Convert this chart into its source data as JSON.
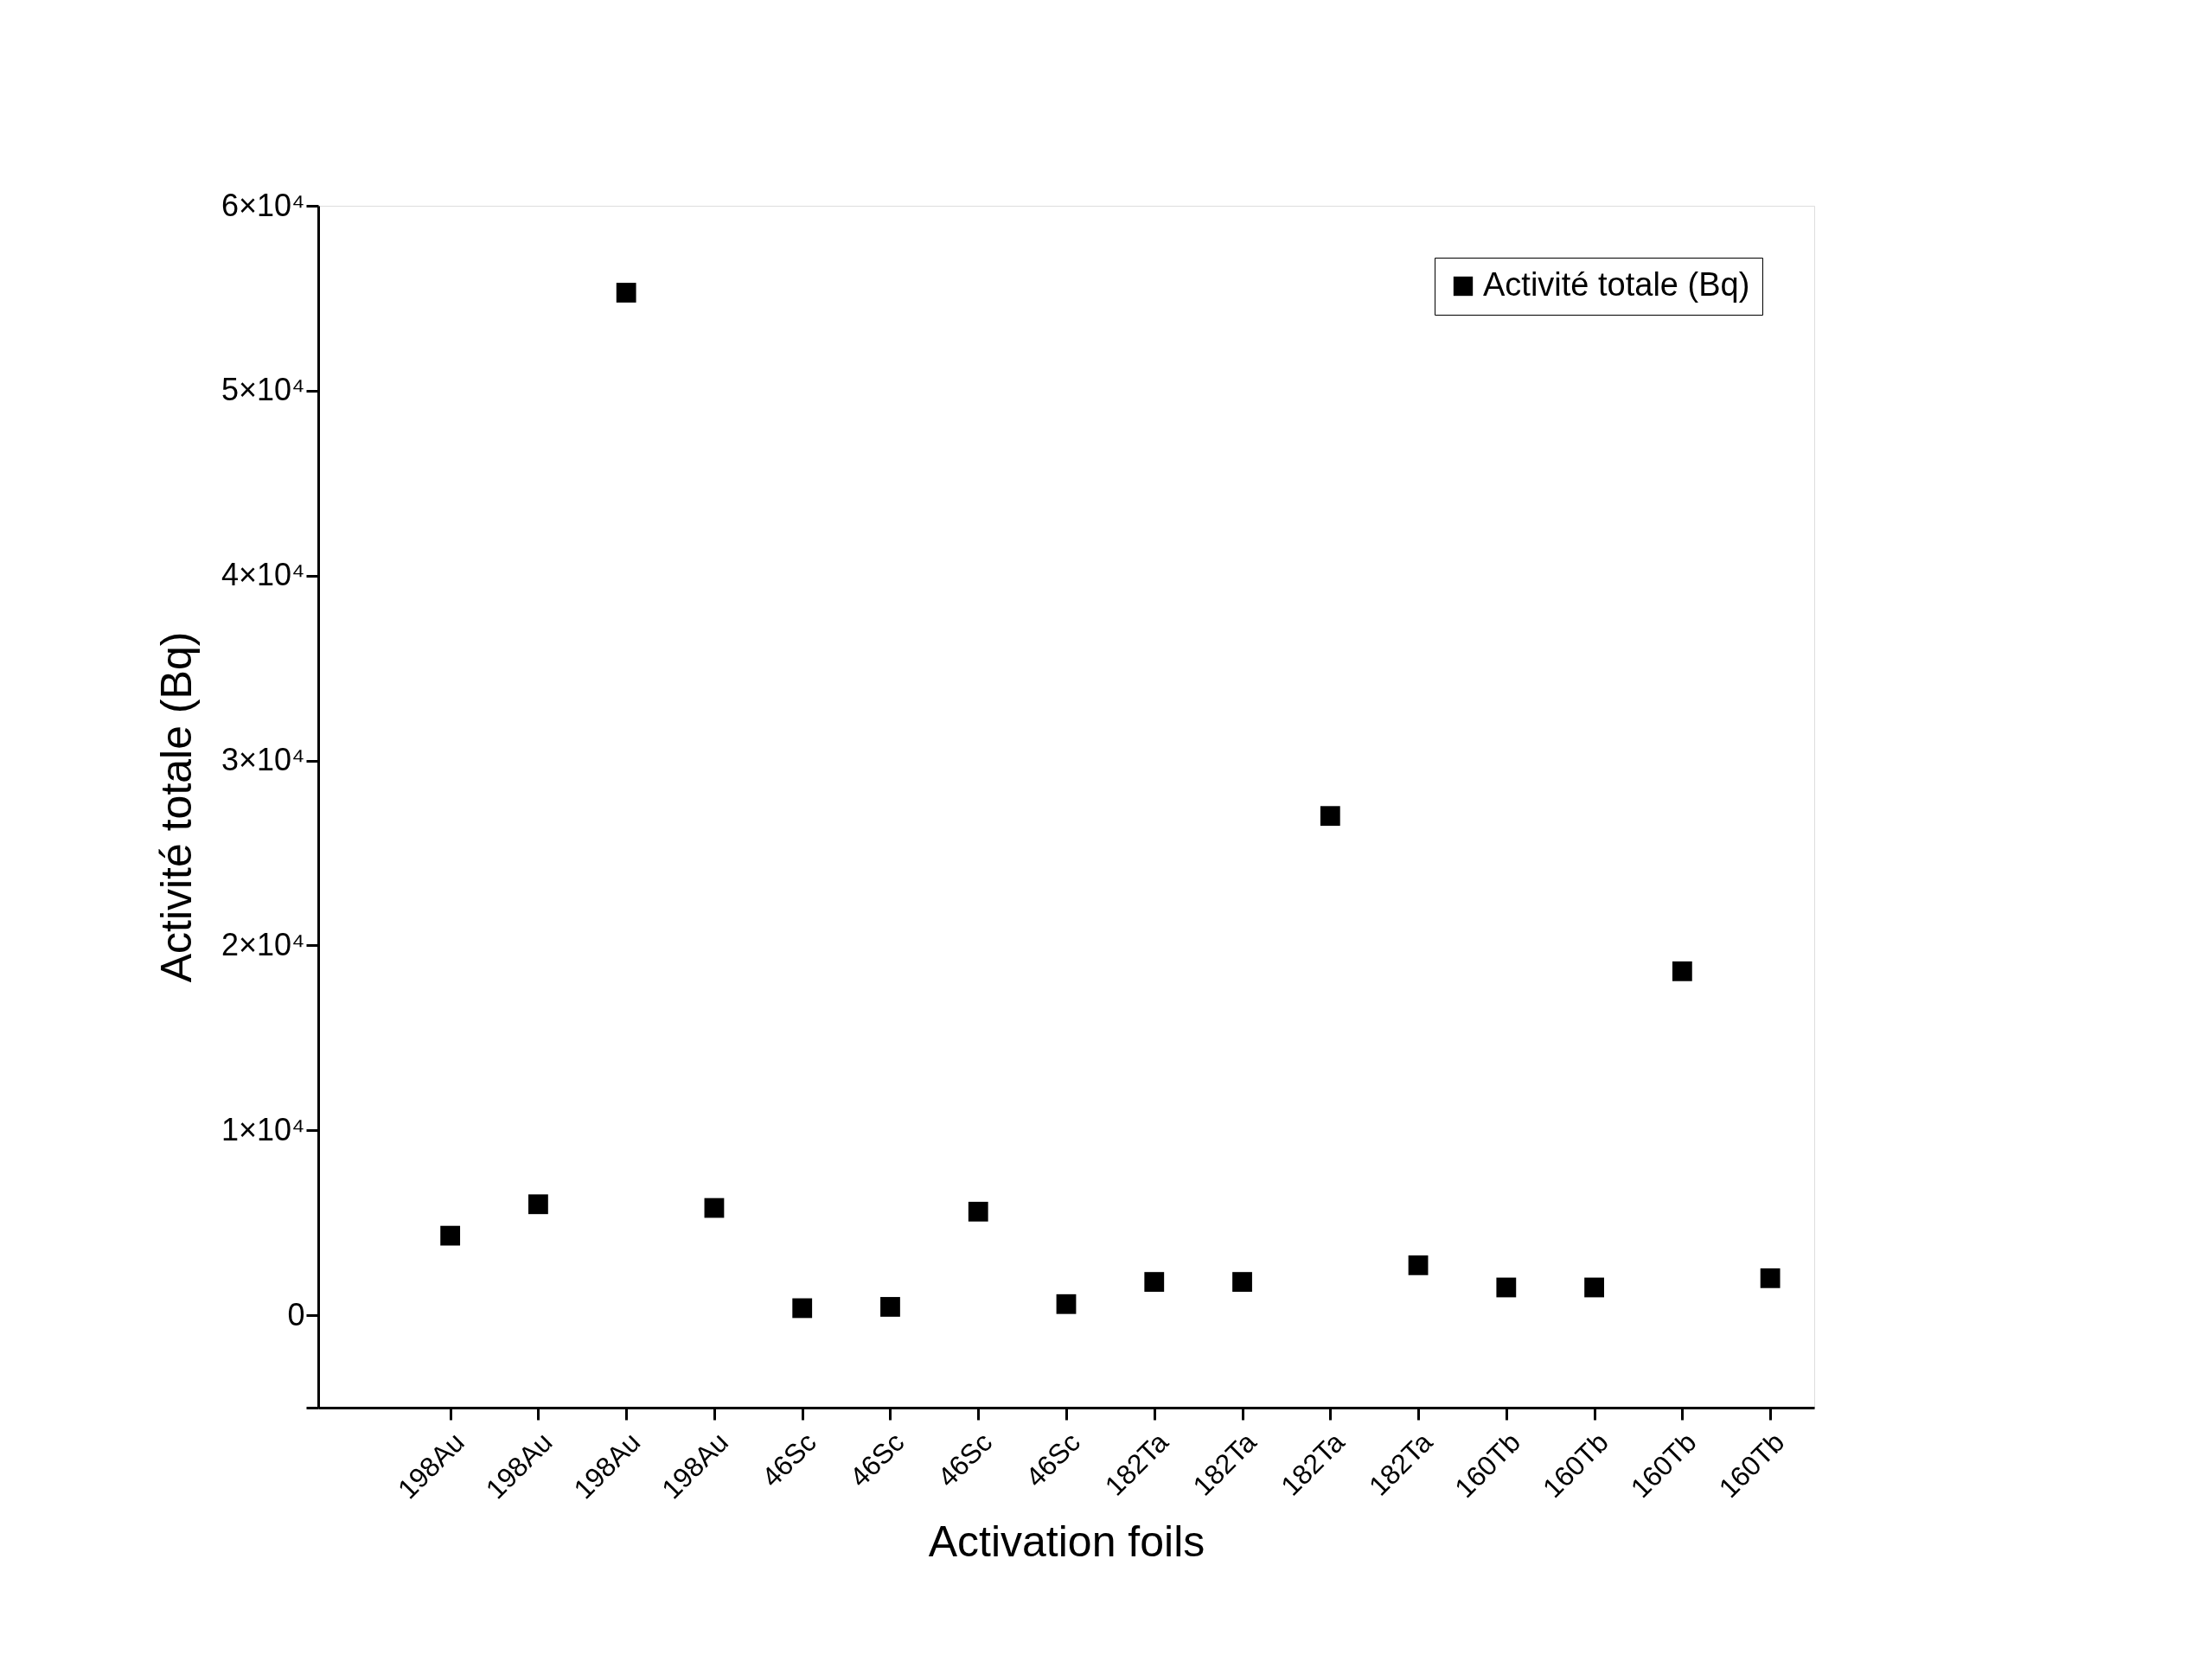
{
  "chart_data": {
    "type": "scatter",
    "xlabel": "Activation foils",
    "ylabel": "Activité totale (Bq)",
    "categories": [
      "198Au",
      "198Au",
      "198Au",
      "198Au",
      "46Sc",
      "46Sc",
      "46Sc",
      "46Sc",
      "182Ta",
      "182Ta",
      "182Ta",
      "182Ta",
      "160Tb",
      "160Tb",
      "160Tb",
      "160Tb"
    ],
    "series": [
      {
        "name": "Activité totale (Bq)",
        "color": "#000000",
        "values": [
          4300,
          6000,
          55300,
          5800,
          380,
          450,
          5600,
          600,
          1800,
          1800,
          27000,
          2700,
          1500,
          1500,
          18600,
          2000
        ]
      }
    ],
    "ylim": [
      -5000,
      60000
    ],
    "yticks": [
      {
        "value": -5000,
        "label": null
      },
      0,
      {
        "value": 10000,
        "label": "1×10⁴"
      },
      {
        "value": 20000,
        "label": "2×10⁴"
      },
      {
        "value": 30000,
        "label": "3×10⁴"
      },
      {
        "value": 40000,
        "label": "4×10⁴"
      },
      {
        "value": 50000,
        "label": "5×10⁴"
      },
      {
        "value": 60000,
        "label": "6×10⁴"
      }
    ],
    "marker": "square",
    "grid": false,
    "legend": "top right"
  }
}
